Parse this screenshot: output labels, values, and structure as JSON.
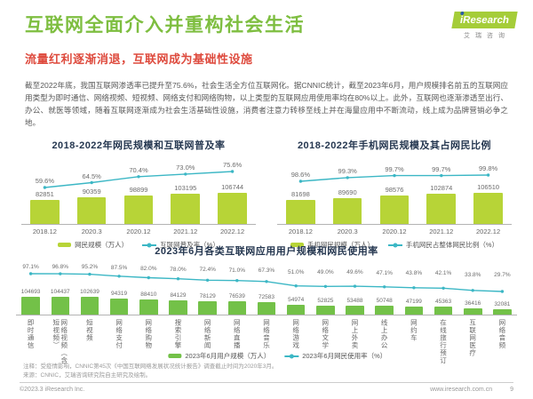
{
  "header": {
    "title": "互联网全面介入并重构社会生活",
    "subtitle": "流量红利逐渐消退，互联网成为基础性设施",
    "logo": {
      "brand": "iResearch",
      "brand_cn": "艾瑞咨询"
    }
  },
  "intro": "截至2022年底，我国互联网渗透率已提升至75.6%，社会生活全方位互联网化。据CNNIC统计，截至2023年6月，用户规模排名前五的互联网应用类型为即时通信、网络视频、短视频、网络支付和网络购物，以上类型的互联网应用使用率均在80%以上。此外，互联网也逐渐渗透至出行、办公、就医等领域，随着互联网逐渐成为社会生活基础性设施，消费者注意力转移至线上并在海量应用中不断流动，线上成为品牌营销必争之地。",
  "colors": {
    "title_green": "#7EBE40",
    "logo_green": "#A5CD39",
    "subtitle_red": "#DE4A3D",
    "chart_title_navy": "#253750",
    "bar_yellow_green": "#B7D437",
    "bar_green": "#73C148",
    "line_teal": "#3CB7C5"
  },
  "chart_data": [
    {
      "type": "bar+line",
      "title": "2018-2022年网民规模和互联网普及率",
      "categories": [
        "2018.12",
        "2020.3",
        "2020.12",
        "2021.12",
        "2022.12"
      ],
      "series": [
        {
          "name": "网民规模（万人）",
          "type": "bar",
          "values": [
            82851,
            90359,
            98899,
            103195,
            106744
          ]
        },
        {
          "name": "互联网普及率（%）",
          "type": "line",
          "values": [
            59.6,
            64.5,
            70.4,
            73.0,
            75.6
          ]
        }
      ],
      "bar_color": "#B7D437",
      "line_color": "#3CB7C5",
      "legend": [
        "网民规模（万人）",
        "互联网普及率（%）"
      ]
    },
    {
      "type": "bar+line",
      "title": "2018-2022年手机网民规模及其占网民比例",
      "categories": [
        "2018.12",
        "2020.3",
        "2020.12",
        "2021.12",
        "2022.12"
      ],
      "series": [
        {
          "name": "手机网民规模（万人）",
          "type": "bar",
          "values": [
            81698,
            89690,
            98576,
            102874,
            106510
          ]
        },
        {
          "name": "手机网民占整体网民比例（%）",
          "type": "line",
          "values": [
            98.6,
            99.3,
            99.7,
            99.7,
            99.8
          ]
        }
      ],
      "bar_color": "#B7D437",
      "line_color": "#3CB7C5",
      "legend": [
        "手机网民规模（万人）",
        "手机网民占整体网民比例（%）"
      ]
    },
    {
      "type": "bar+line",
      "title": "2023年6月各类互联网应用用户规模和网民使用率",
      "categories": [
        "即时通信",
        "网络视频（含短视频）",
        "短视频",
        "网络支付",
        "网络购物",
        "搜索引擎",
        "网络新闻",
        "网络直播",
        "网络音乐",
        "网络游戏",
        "网络文学",
        "网上外卖",
        "线上办公",
        "网约车",
        "在线旅行预订",
        "互联网医疗",
        "网络音频"
      ],
      "series": [
        {
          "name": "2023年6月用户规模（万人）",
          "type": "bar",
          "values": [
            104693,
            104437,
            102639,
            94319,
            88410,
            84129,
            78129,
            76539,
            72583,
            54974,
            52825,
            53488,
            50748,
            47199,
            45363,
            36416,
            32081
          ]
        },
        {
          "name": "2023年6月网民使用率（%）",
          "type": "line",
          "values": [
            97.1,
            96.8,
            95.2,
            87.5,
            82.0,
            78.0,
            72.4,
            71.0,
            67.3,
            51.0,
            49.0,
            49.6,
            47.1,
            43.8,
            42.1,
            33.8,
            29.7
          ]
        }
      ],
      "bar_color": "#73C148",
      "line_color": "#3CB7C5",
      "legend": [
        "2023年6月用户规模（万人）",
        "2023年6月网民使用率（%）"
      ]
    }
  ],
  "notes": {
    "note": "注释：受疫情影响，CNNIC第45次《中国互联网络发展状况统计报告》调查截止时间为2020年3月。",
    "source": "来源：CNNIC，艾瑞咨询研究院自主研究及绘制。"
  },
  "footer": {
    "copyright": "©2023.3 iResearch Inc.",
    "url": "www.iresearch.com.cn",
    "page": "9"
  }
}
